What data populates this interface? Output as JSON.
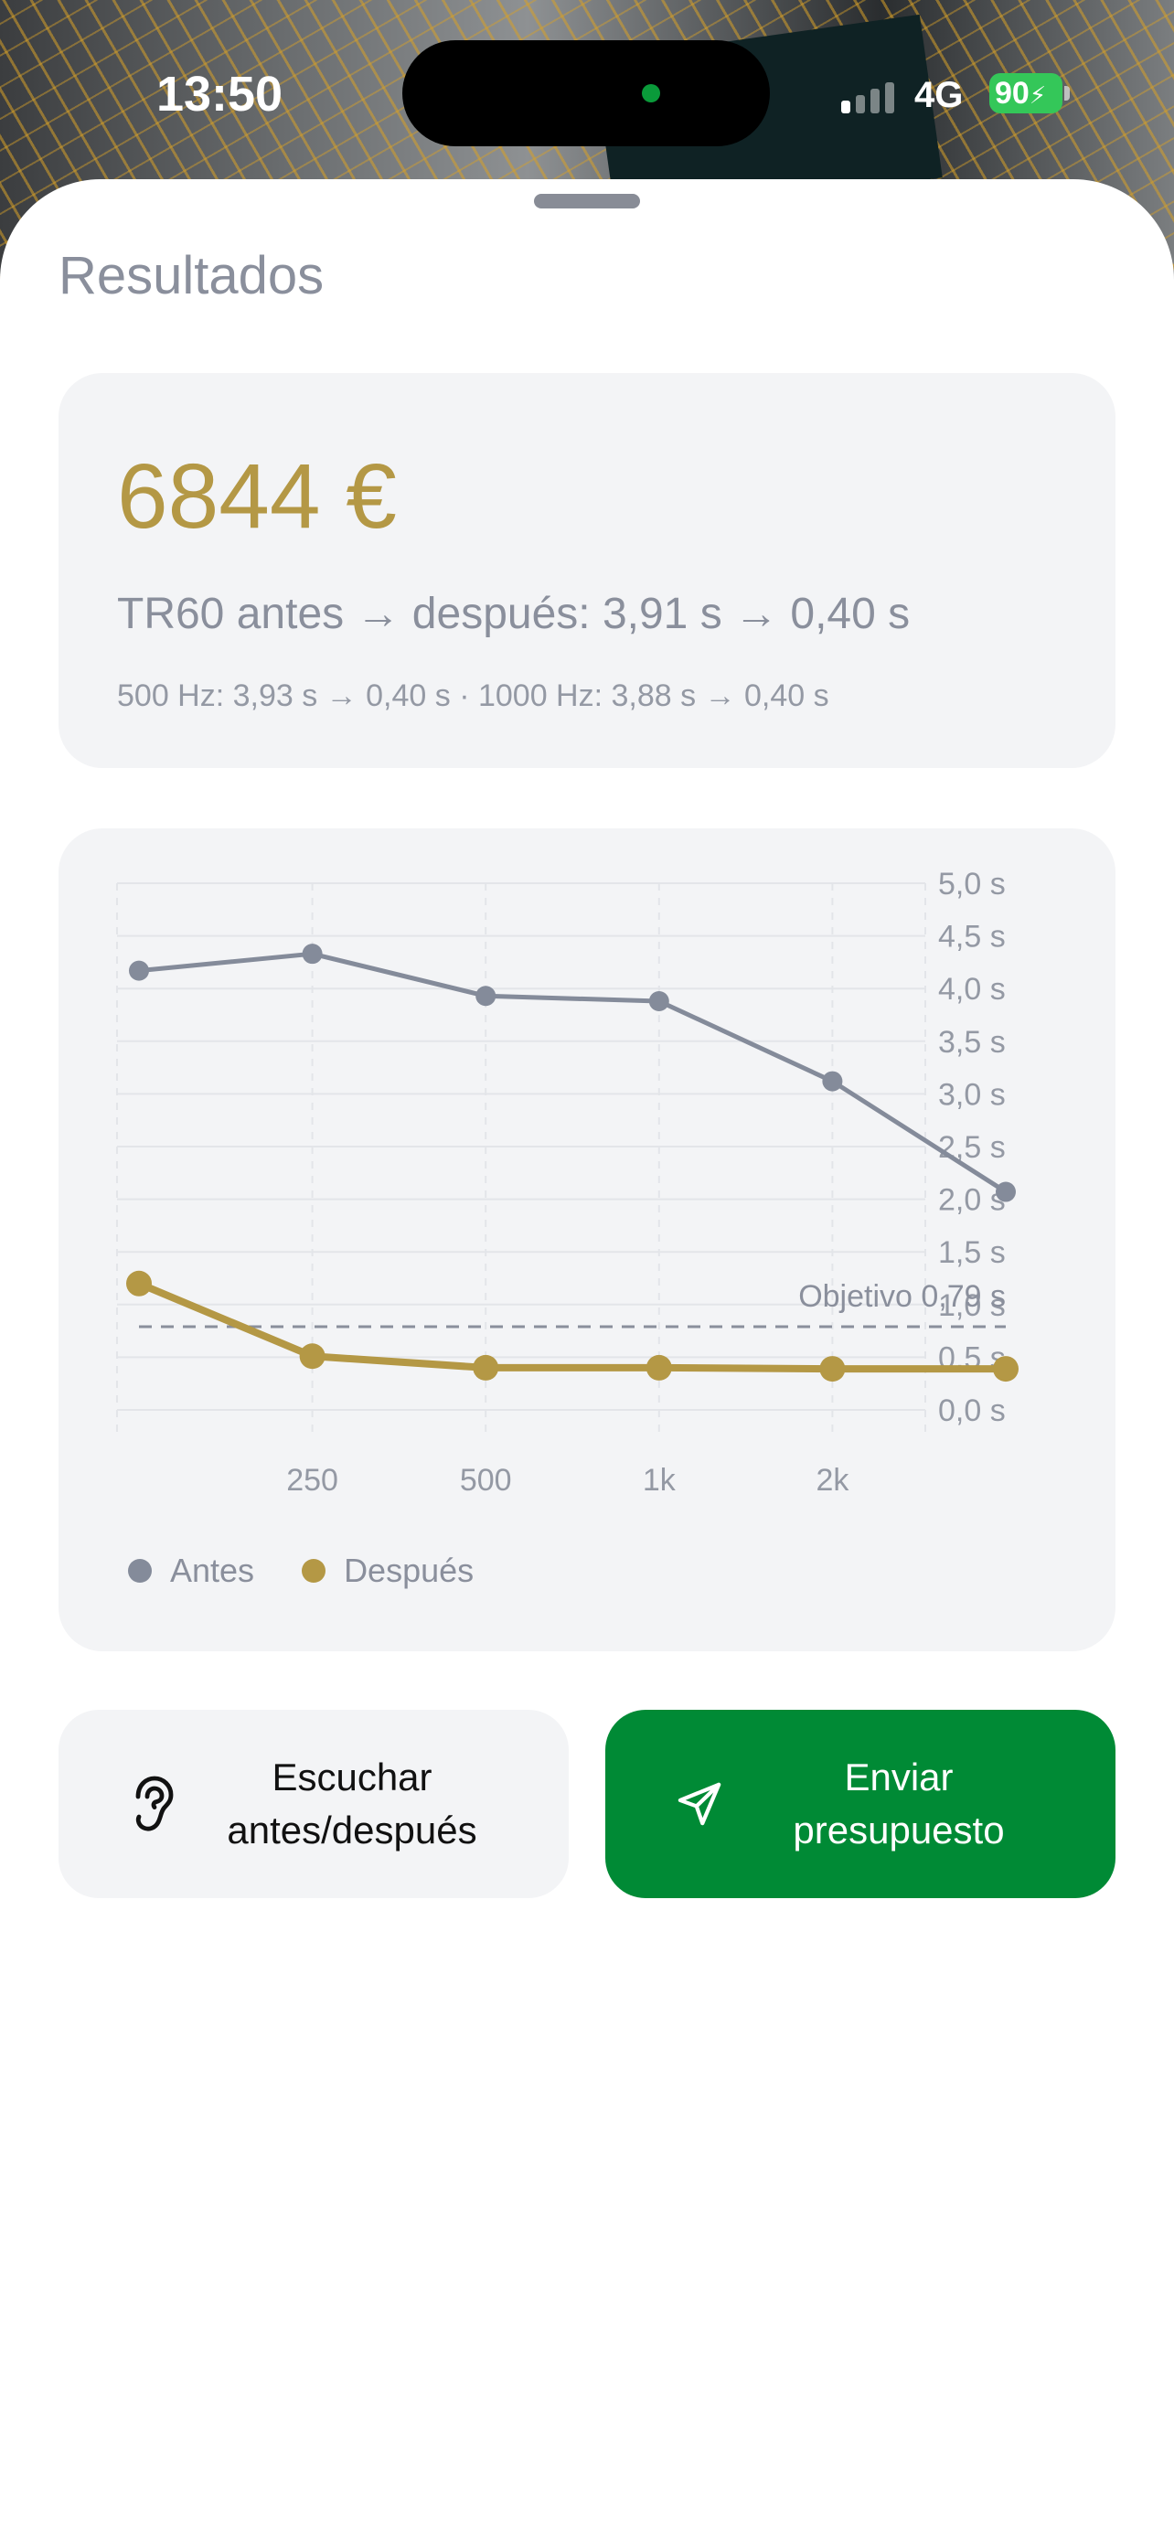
{
  "status_bar": {
    "time": "13:50",
    "network": "4G",
    "battery": "90"
  },
  "sheet": {
    "title": "Resultados"
  },
  "summary": {
    "price": "6844 €",
    "tr60_line": "TR60 antes → después: 3,91 s → 0,40 s",
    "detail_line": "500 Hz: 3,93 s → 0,40 s · 1000 Hz: 3,88 s → 0,40 s"
  },
  "chart_data": {
    "type": "line",
    "x": [
      125,
      250,
      500,
      1000,
      2000,
      4000
    ],
    "x_tick_labels": [
      "250",
      "500",
      "1k",
      "2k"
    ],
    "x_tick_values": [
      250,
      500,
      1000,
      2000
    ],
    "y_tick_labels": [
      "5,0 s",
      "4,5 s",
      "4,0 s",
      "3,5 s",
      "3,0 s",
      "2,5 s",
      "2,0 s",
      "1,5 s",
      "1,0 s",
      "0,5 s",
      "0,0 s"
    ],
    "ylim": [
      0,
      5
    ],
    "grid": true,
    "legend_position": "bottom-left",
    "series": [
      {
        "name": "Antes",
        "color": "#848b9a",
        "values": [
          4.17,
          4.33,
          3.93,
          3.88,
          3.12,
          2.07
        ]
      },
      {
        "name": "Después",
        "color": "#b49845",
        "values": [
          1.2,
          0.51,
          0.4,
          0.4,
          0.39,
          0.39
        ]
      }
    ],
    "target": {
      "label": "Objetivo 0,79 s",
      "value": 0.79
    }
  },
  "actions": {
    "listen_label": "Escuchar antes/después",
    "send_label": "Enviar presupuesto",
    "listen_icon": "ear-icon",
    "send_icon": "send-icon"
  },
  "colors": {
    "accent_gold": "#b49845",
    "send_green": "#008a35",
    "muted_gray": "#8a8f9c"
  }
}
